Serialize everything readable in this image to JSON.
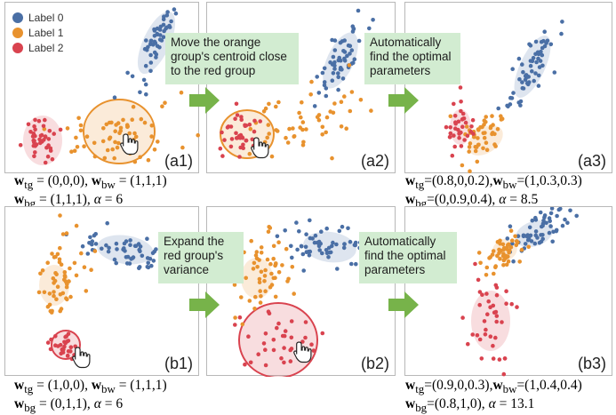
{
  "legend": [
    {
      "label": "Label 0",
      "color": "#4a6fa5"
    },
    {
      "label": "Label 1",
      "color": "#e8922e"
    },
    {
      "label": "Label 2",
      "color": "#d9434f"
    }
  ],
  "panels": {
    "a1": {
      "label": "(a1)"
    },
    "a2": {
      "label": "(a2)"
    },
    "a3": {
      "label": "(a3)"
    },
    "b1": {
      "label": "(b1)"
    },
    "b2": {
      "label": "(b2)"
    },
    "b3": {
      "label": "(b3)"
    }
  },
  "notes": {
    "a_move": "Move the orange\ngroup's centroid close\nto the red group",
    "a_auto": "Automatically\nfind the optimal\nparameters",
    "b_expand": "Expand the\nred group's\nvariance",
    "b_auto": "Automatically\nfind the optimal\nparameters"
  },
  "captions": {
    "a1_line1": "w_tg = (0,0,0), w_bw = (1,1,1)",
    "a1_line2": "w_bg = (1,1,1), α = 6",
    "a3_line1": "w_tg=(0.8,0,0.2),w_bw=(1,0.3,0.3)",
    "a3_line2": "w_bg=(0,0.9,0.4), α = 8.5",
    "b1_line1": "w_tg = (1,0,0), w_bw = (1,1,1)",
    "b1_line2": "w_bg = (0,1,1), α = 6",
    "b3_line1": "w_tg=(0.9,0,0.3),w_bw=(1,0.4,0.4)",
    "b3_line2": "w_bg=(0.8,1,0), α = 13.1"
  },
  "icons": [
    "hand-cursor-icon",
    "right-arrow-icon"
  ]
}
